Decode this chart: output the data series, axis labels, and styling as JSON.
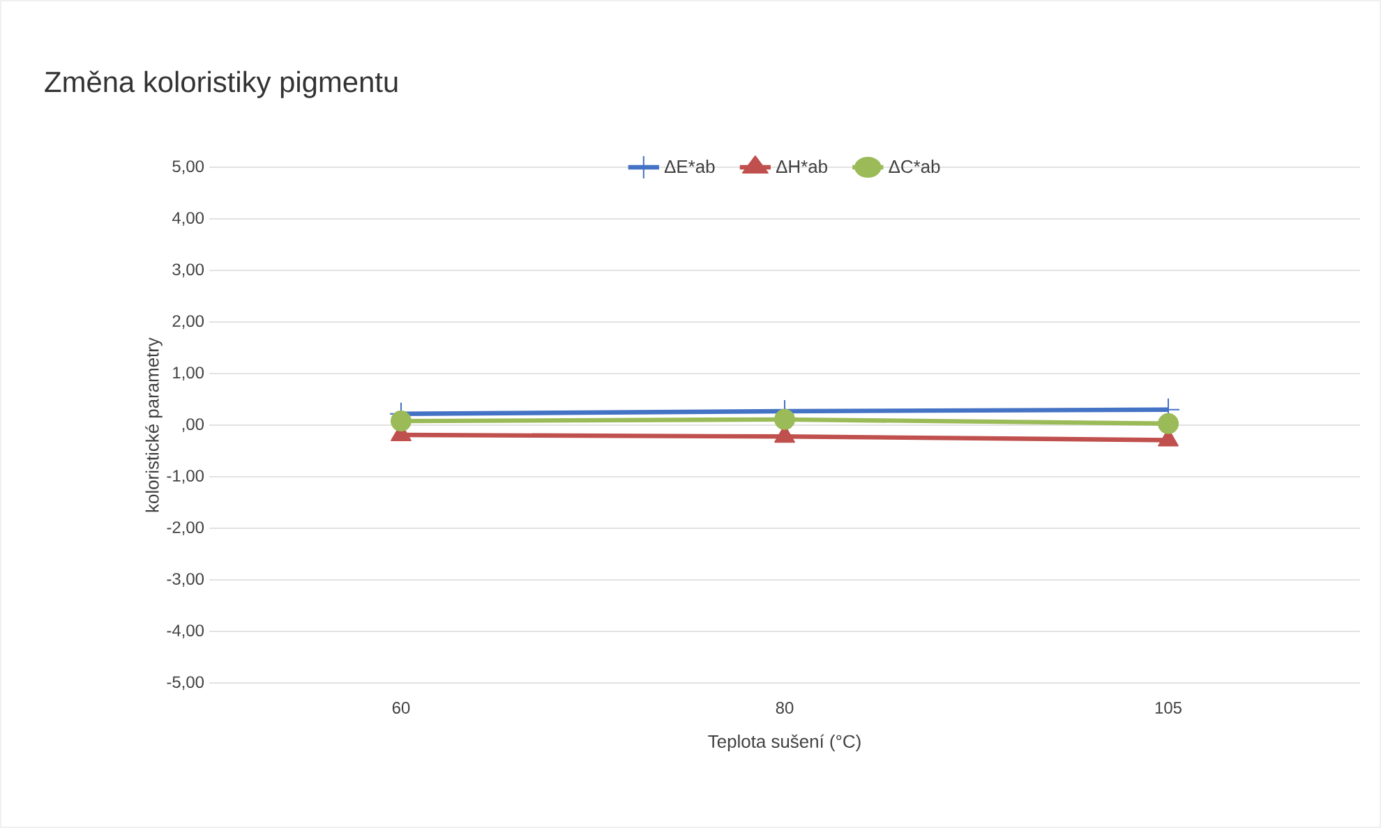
{
  "chart_data": {
    "type": "line",
    "title": "Změna koloristiky pigmentu",
    "xlabel": "Teplota sušení (°C)",
    "ylabel": "koloristické parametry",
    "categories": [
      "60",
      "80",
      "105"
    ],
    "series": [
      {
        "name": "ΔE*ab",
        "color": "#4472c4",
        "marker": "cross",
        "values": [
          0.22,
          0.27,
          0.3
        ]
      },
      {
        "name": "ΔH*ab",
        "color": "#c0504d",
        "marker": "triangle",
        "values": [
          -0.19,
          -0.22,
          -0.29
        ]
      },
      {
        "name": "ΔC*ab",
        "color": "#9bbb59",
        "marker": "circle",
        "values": [
          0.08,
          0.11,
          0.03
        ]
      }
    ],
    "ylim": [
      -5,
      5
    ],
    "yticks": [
      {
        "value": -5,
        "label": "-5,00"
      },
      {
        "value": -4,
        "label": "-4,00"
      },
      {
        "value": -3,
        "label": "-3,00"
      },
      {
        "value": -2,
        "label": "-2,00"
      },
      {
        "value": -1,
        "label": "-1,00"
      },
      {
        "value": 0,
        "label": ",00"
      },
      {
        "value": 1,
        "label": "1,00"
      },
      {
        "value": 2,
        "label": "2,00"
      },
      {
        "value": 3,
        "label": "3,00"
      },
      {
        "value": 4,
        "label": "4,00"
      },
      {
        "value": 5,
        "label": "5,00"
      }
    ],
    "grid": "y",
    "legend": "top",
    "line_style": "solid"
  }
}
